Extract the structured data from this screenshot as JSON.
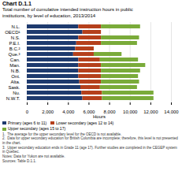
{
  "chart_data": {
    "type": "bar",
    "orientation": "horizontal",
    "stacked": true,
    "title": "Chart D.1.1",
    "subtitle": [
      "Total number of cumulative intended instruction hours in public",
      "institutions, by level of education, 2013/2014"
    ],
    "categories": [
      "N.W.T.",
      "Nu.",
      "Sask.",
      "Alta.",
      "Ont.",
      "N.B.",
      "Man.",
      "Can.",
      "Que.³",
      "B.C.²",
      "P.E.I.",
      "N.S.",
      "OECD¹",
      "N.L."
    ],
    "series": [
      {
        "name": "Primary (ages 6 to 11)",
        "color": "#1e3a6e",
        "values": [
          5400,
          5300,
          5200,
          5100,
          5000,
          5000,
          5000,
          5000,
          4500,
          4700,
          4800,
          5000,
          5400,
          5000
        ]
      },
      {
        "name": "Lower secondary (ages 12 to 14)",
        "color": "#b5401c",
        "values": [
          1900,
          2000,
          1900,
          2100,
          2200,
          2200,
          2200,
          2100,
          2000,
          1800,
          2400,
          2200,
          1800,
          2200
        ]
      },
      {
        "name": "Upper secondary (ages 15 to 17)",
        "color": "#7aab3a",
        "values": [
          5000,
          5000,
          3600,
          3700,
          3600,
          3800,
          4300,
          3700,
          2700,
          0,
          3500,
          3700,
          0,
          3800
        ]
      }
    ],
    "xlabel": "Hours",
    "xlim": [
      0,
      14000
    ],
    "xticks": [
      0,
      {
        "value": 2000,
        "label": "2,000"
      },
      {
        "value": 4000,
        "label": "4,000"
      },
      {
        "value": 6000,
        "label": "6,000"
      },
      {
        "value": 8000,
        "label": "8,000"
      },
      {
        "value": 10000,
        "label": "10,000"
      },
      {
        "value": 12000,
        "label": "12,000"
      },
      {
        "value": 14000,
        "label": "14,000"
      }
    ],
    "grid": true,
    "legend": "bottom",
    "annotations": [
      "1.  The average for the upper secondary level for the OECD is not available.",
      "2.  Data for upper secondary education for British Columbia are incomplete; therefore, this level is not presented in the chart.",
      "3.  Upper secondary education ends in Grade 11 (age 17). Further studies are completed in the CEGEP system in Quebec.",
      "Notes: Data for Yukon are not available.",
      "Sources: Table D.1.1."
    ]
  }
}
